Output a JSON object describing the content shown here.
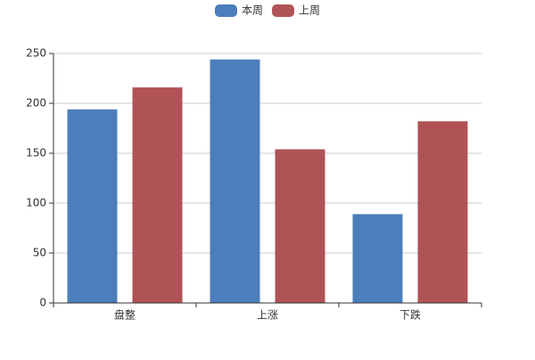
{
  "chart_data": {
    "type": "bar",
    "categories": [
      "盘整",
      "上涨",
      "下跌"
    ],
    "series": [
      {
        "name": "本周",
        "color": "#4c7ebb",
        "values": [
          194,
          244,
          89
        ]
      },
      {
        "name": "上周",
        "color": "#b05357",
        "values": [
          216,
          154,
          182
        ]
      }
    ],
    "ylim": [
      0,
      250
    ],
    "yticks": [
      0,
      50,
      100,
      150,
      200,
      250
    ],
    "grid": true,
    "legend": "top"
  }
}
